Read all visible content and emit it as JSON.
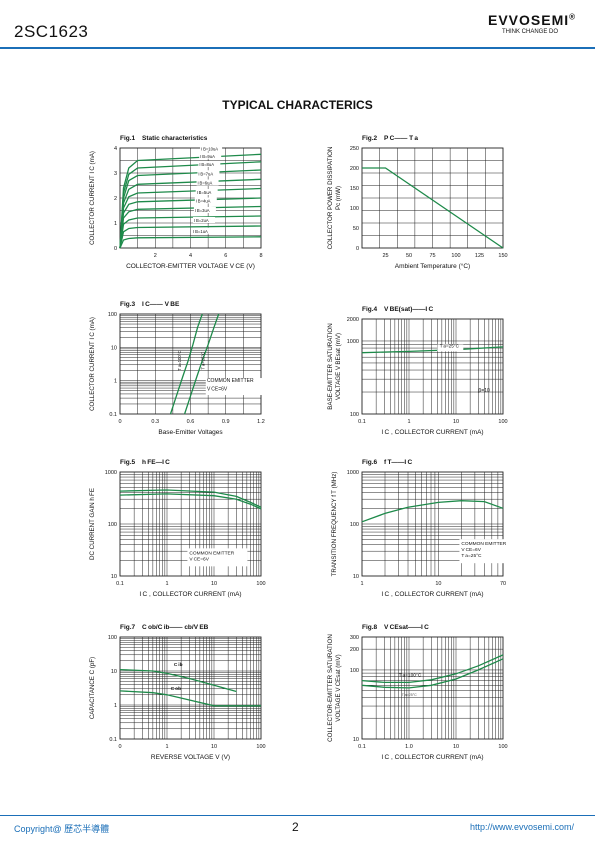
{
  "header": {
    "part_number": "2SC1623",
    "brand": "EVVOSEMI",
    "reg_mark": "®",
    "slogan": "THINK CHANGE DO"
  },
  "section_title": "TYPICAL CHARACTERICS",
  "footer": {
    "copyright": "Copyright@ 歷芯半導體",
    "page": "2",
    "website": "http://www.evvosemi.com/"
  },
  "colors": {
    "curve": "#1e8a4a",
    "grid": "#222222",
    "accent": "#1b6fb8"
  },
  "chart_data": [
    {
      "type": "line",
      "fig": "Fig.1",
      "title": "Static characteristics",
      "xlabel": "COLLECTOR-EMITTER VOLTAGE V CE (V)",
      "ylabel": "COLLECTOR CURRENT I C (mA)",
      "x_ticks": [
        "2",
        "4",
        "6",
        "8"
      ],
      "y_ticks": [
        "0",
        "1",
        "2",
        "3",
        "4"
      ],
      "xlim": [
        0,
        8
      ],
      "ylim": [
        0,
        4
      ],
      "xscale": "linear",
      "yscale": "linear",
      "series": [
        {
          "name": "I B=10uA",
          "x": [
            0,
            0.2,
            0.5,
            1,
            8
          ],
          "y": [
            0,
            2.4,
            3.2,
            3.5,
            3.75
          ]
        },
        {
          "name": "I B=9uA",
          "x": [
            0,
            0.2,
            0.5,
            1,
            8
          ],
          "y": [
            0,
            2.2,
            2.95,
            3.2,
            3.45
          ]
        },
        {
          "name": "I B=8uA",
          "x": [
            0,
            0.2,
            0.5,
            1,
            8
          ],
          "y": [
            0,
            2.0,
            2.7,
            2.9,
            3.12
          ]
        },
        {
          "name": "I B=7uA",
          "x": [
            0,
            0.2,
            0.5,
            1,
            8
          ],
          "y": [
            0,
            1.8,
            2.35,
            2.55,
            2.75
          ]
        },
        {
          "name": "I B=6uA",
          "x": [
            0,
            0.2,
            0.5,
            1,
            8
          ],
          "y": [
            0,
            1.6,
            2.05,
            2.2,
            2.38
          ]
        },
        {
          "name": "I B=5uA",
          "x": [
            0,
            0.2,
            0.5,
            1,
            8
          ],
          "y": [
            0,
            1.4,
            1.75,
            1.85,
            2.0
          ]
        },
        {
          "name": "I B=4uA",
          "x": [
            0,
            0.2,
            0.5,
            1,
            8
          ],
          "y": [
            0,
            1.2,
            1.45,
            1.55,
            1.66
          ]
        },
        {
          "name": "I B=3uA",
          "x": [
            0,
            0.2,
            0.5,
            1,
            8
          ],
          "y": [
            0,
            0.95,
            1.12,
            1.2,
            1.28
          ]
        },
        {
          "name": "I B=2uA",
          "x": [
            0,
            0.2,
            0.5,
            1,
            8
          ],
          "y": [
            0,
            0.65,
            0.78,
            0.82,
            0.88
          ]
        },
        {
          "name": "I B=1uA",
          "x": [
            0,
            0.2,
            0.5,
            1,
            8
          ],
          "y": [
            0,
            0.32,
            0.38,
            0.41,
            0.45
          ]
        }
      ]
    },
    {
      "type": "line",
      "fig": "Fig.2",
      "title": "P C—— T a",
      "xlabel": "Ambient Temperature (°C)",
      "ylabel": "COLLECTOR POWER DISSIPATION\nPc (mW)",
      "x_ticks": [
        "25",
        "50",
        "75",
        "100",
        "125",
        "150"
      ],
      "y_ticks": [
        "0",
        "50",
        "100",
        "150",
        "200",
        "250"
      ],
      "xlim": [
        0,
        150
      ],
      "ylim": [
        0,
        250
      ],
      "xscale": "linear",
      "yscale": "linear",
      "series": [
        {
          "name": "",
          "x": [
            0,
            25,
            150
          ],
          "y": [
            200,
            200,
            0
          ]
        }
      ]
    },
    {
      "type": "line",
      "fig": "Fig.3",
      "title": "I C—— V BE",
      "xlabel": "Base-Emitter Voltages",
      "ylabel": "COLLECTOR CURRENT I C (mA)",
      "x_ticks": [
        "0",
        "0.3",
        "0.6",
        "0.9",
        "1.2"
      ],
      "y_ticks": [
        "0.1",
        "1",
        "10",
        "100"
      ],
      "xlim": [
        0,
        1.2
      ],
      "ylim": [
        0.1,
        100
      ],
      "xscale": "linear",
      "yscale": "log",
      "annotations": [
        "COMMON EMITTER",
        "V CE=6V",
        "T a=100°C",
        "T a=25°C"
      ],
      "series": [
        {
          "name": "T a=100°C",
          "x": [
            0.43,
            0.48,
            0.53,
            0.58,
            0.62,
            0.66,
            0.7
          ],
          "y": [
            0.1,
            0.35,
            1.2,
            4,
            12,
            40,
            100
          ]
        },
        {
          "name": "T a=25°C",
          "x": [
            0.55,
            0.6,
            0.65,
            0.7,
            0.75,
            0.8,
            0.84
          ],
          "y": [
            0.1,
            0.35,
            1.2,
            4,
            12,
            40,
            100
          ]
        }
      ]
    },
    {
      "type": "line",
      "fig": "Fig.4",
      "title": "V BE(sat)——I C",
      "xlabel": "I C , COLLECTOR CURRENT (mA)",
      "ylabel": "BASE-EMITTER SATURATION\nVOLTAGE V BEsat (mV)",
      "x_ticks": [
        "0.1",
        "1",
        "10",
        "100"
      ],
      "y_ticks": [
        "100",
        "1000",
        "2000"
      ],
      "xlim": [
        0.1,
        100
      ],
      "ylim": [
        100,
        2000
      ],
      "xscale": "log",
      "yscale": "log",
      "annotations": [
        "T a=25°C",
        "β=10"
      ],
      "series": [
        {
          "name": "",
          "x": [
            0.1,
            1,
            10,
            100
          ],
          "y": [
            690,
            720,
            760,
            830
          ]
        }
      ]
    },
    {
      "type": "line",
      "fig": "Fig.5",
      "title": "h FE—I C",
      "xlabel": "I C , COLLECTOR CURRENT (mA)",
      "ylabel": "DC CURRENT GAIN h FE",
      "x_ticks": [
        "0.1",
        "1",
        "10",
        "100"
      ],
      "y_ticks": [
        "10",
        "100",
        "1000"
      ],
      "xlim": [
        0.1,
        100
      ],
      "ylim": [
        10,
        1000
      ],
      "xscale": "log",
      "yscale": "log",
      "annotations": [
        "COMMON EMITTER",
        "V CE=6V"
      ],
      "series": [
        {
          "name": "",
          "x": [
            0.1,
            1,
            10,
            30,
            60,
            100
          ],
          "y": [
            430,
            450,
            410,
            340,
            260,
            210
          ]
        },
        {
          "name": "",
          "x": [
            0.1,
            1,
            10,
            30,
            60,
            100
          ],
          "y": [
            360,
            380,
            350,
            300,
            240,
            195
          ]
        }
      ]
    },
    {
      "type": "line",
      "fig": "Fig.6",
      "title": "f T——I C",
      "xlabel": "I C , COLLECTOR CURRENT (mA)",
      "ylabel": "TRANSITION FREQUENCY f T (MHz)",
      "x_ticks": [
        "1",
        "10",
        "70"
      ],
      "y_ticks": [
        "10",
        "100",
        "1000"
      ],
      "xlim": [
        1,
        70
      ],
      "ylim": [
        10,
        1000
      ],
      "xscale": "log",
      "yscale": "log",
      "annotations": [
        "COMMON EMITTER",
        "V CE=6V",
        "T a=25°C"
      ],
      "series": [
        {
          "name": "",
          "x": [
            1,
            2,
            4,
            10,
            20,
            40,
            70
          ],
          "y": [
            110,
            160,
            210,
            260,
            280,
            270,
            200
          ]
        }
      ]
    },
    {
      "type": "line",
      "fig": "Fig.7",
      "title": "C ob/C ib—— cb/V EB",
      "xlabel": "REVERSE VOLTAGE V (V)",
      "ylabel": "CAPACITANCE C (pF)",
      "x_ticks": [
        "0",
        "1",
        "10",
        "100"
      ],
      "y_ticks": [
        "0.1",
        "1",
        "10",
        "100"
      ],
      "xlim": [
        0.1,
        100
      ],
      "ylim": [
        0.1,
        100
      ],
      "xscale": "log",
      "yscale": "log",
      "series": [
        {
          "name": "C ib",
          "x": [
            0.1,
            0.5,
            1,
            3,
            10,
            30
          ],
          "y": [
            11,
            10,
            8.5,
            6,
            3.8,
            2.5
          ]
        },
        {
          "name": "C ob",
          "x": [
            0.1,
            0.5,
            1,
            3,
            10,
            100
          ],
          "y": [
            2.6,
            2.3,
            2.0,
            1.4,
            0.95,
            0.95
          ]
        }
      ]
    },
    {
      "type": "line",
      "fig": "Fig.8",
      "title": "V CEsat——I C",
      "xlabel": "I C , COLLECTOR CURRENT (mA)",
      "ylabel": "COLLECTOR-EMITTER SATURATION\nVOLTAGE V CEsat (mV)",
      "x_ticks": [
        "0.1",
        "1.0",
        "10",
        "100"
      ],
      "y_ticks": [
        "10",
        "100",
        "200",
        "300"
      ],
      "xlim": [
        0.1,
        100
      ],
      "ylim": [
        10,
        300
      ],
      "xscale": "log",
      "yscale": "log",
      "annotations": [
        "T a=100°C",
        "T a=25°C"
      ],
      "series": [
        {
          "name": "T a=100°C",
          "x": [
            0.1,
            0.3,
            1,
            3,
            10,
            30,
            100
          ],
          "y": [
            70,
            66,
            66,
            72,
            88,
            115,
            165
          ]
        },
        {
          "name": "T a=25°C",
          "x": [
            0.1,
            0.3,
            1,
            3,
            10,
            30,
            100
          ],
          "y": [
            60,
            56,
            55,
            60,
            74,
            100,
            145
          ]
        }
      ]
    }
  ]
}
